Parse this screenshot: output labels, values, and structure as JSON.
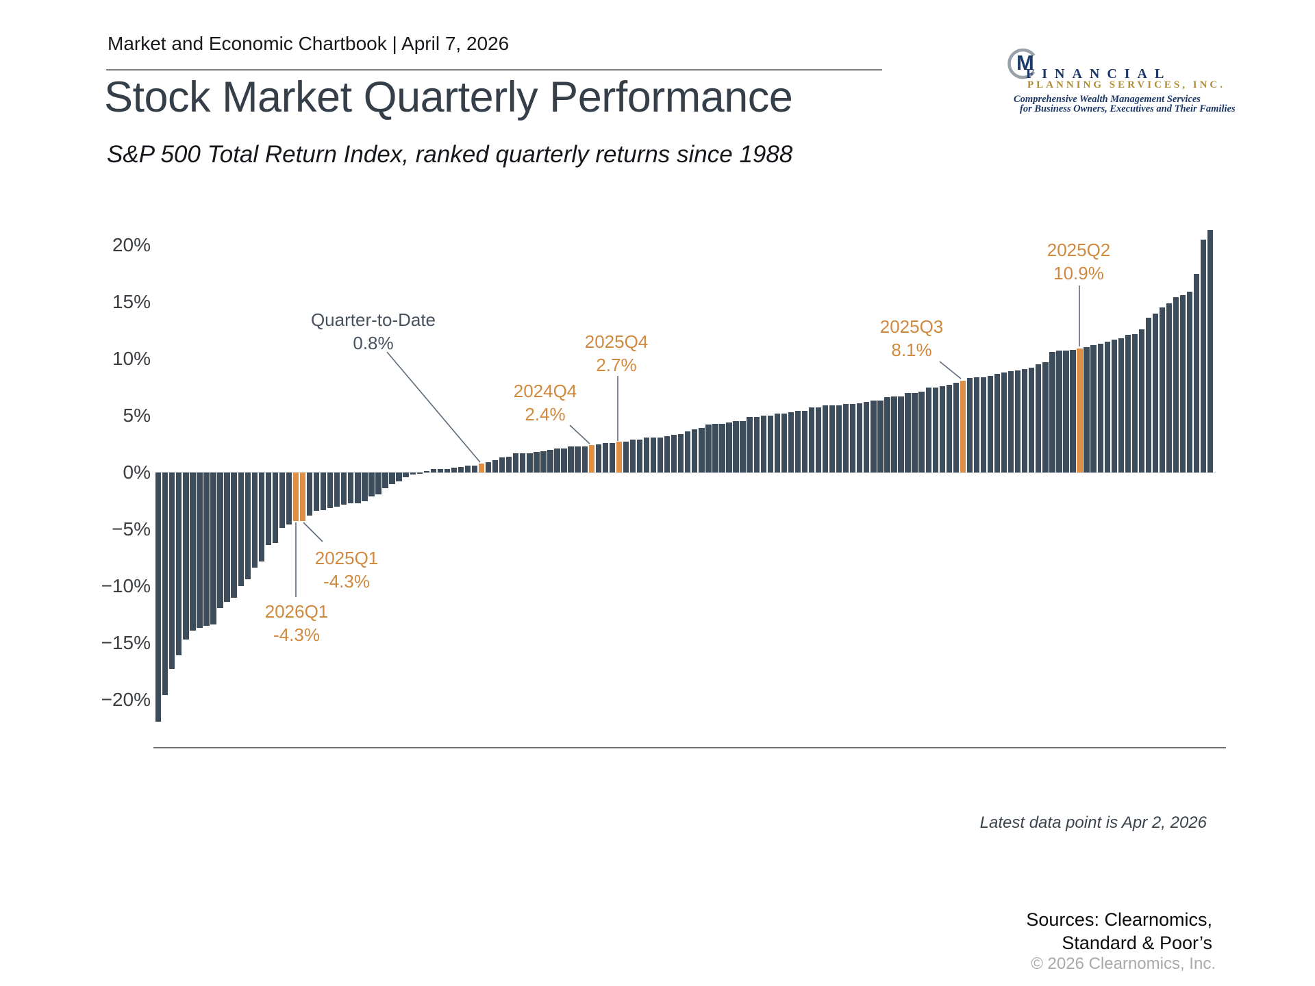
{
  "header": {
    "chartbook": "Market and Economic Chartbook | April 7, 2026"
  },
  "title": "Stock Market Quarterly Performance",
  "subtitle": "S&P 500 Total Return Index, ranked quarterly returns since 1988",
  "logo": {
    "monogram": "M",
    "line1": "FINANCIAL",
    "line2": "PLANNING SERVICES, INC.",
    "tagline1": "Comprehensive Wealth Management Services",
    "tagline2": "for Business Owners, Executives and Their Families",
    "navy": "#1c3768",
    "gold": "#ad8c35",
    "arc_gray": "#98a1aa"
  },
  "colors": {
    "bar": "#3d4c5b",
    "highlight": "#de9049",
    "annotation_orange": "#d0893f",
    "annotation_dark": "#47525e",
    "callout_line": "#5d6b7a",
    "title": "#353f4a",
    "axis_line": "#6f7276"
  },
  "chart_data": {
    "type": "bar",
    "title": "S&P 500 Total Return Index, ranked quarterly returns since 1988",
    "xlabel": "",
    "ylabel": "",
    "ylim": [
      -23,
      22.5
    ],
    "grid": false,
    "legend": false,
    "y_ticks": [
      "20%",
      "15%",
      "10%",
      "5%",
      "0%",
      "−5%",
      "−10%",
      "−15%",
      "−20%"
    ],
    "y_tick_values": [
      20,
      15,
      10,
      5,
      0,
      -5,
      -10,
      -15,
      -20
    ],
    "values": [
      -21.9,
      -19.6,
      -17.3,
      -16.1,
      -14.7,
      -13.9,
      -13.7,
      -13.5,
      -13.4,
      -11.9,
      -11.4,
      -11.0,
      -10.0,
      -9.4,
      -8.4,
      -7.8,
      -6.4,
      -6.2,
      -4.9,
      -4.6,
      -4.3,
      -4.3,
      -3.8,
      -3.4,
      -3.3,
      -3.1,
      -3.0,
      -2.8,
      -2.7,
      -2.7,
      -2.5,
      -2.1,
      -1.9,
      -1.4,
      -1.0,
      -0.8,
      -0.4,
      -0.2,
      -0.1,
      0.1,
      0.3,
      0.3,
      0.3,
      0.4,
      0.5,
      0.6,
      0.6,
      0.8,
      0.9,
      1.1,
      1.3,
      1.4,
      1.7,
      1.7,
      1.7,
      1.8,
      1.9,
      2.0,
      2.1,
      2.1,
      2.3,
      2.3,
      2.3,
      2.4,
      2.5,
      2.6,
      2.6,
      2.7,
      2.7,
      2.9,
      2.9,
      3.1,
      3.1,
      3.1,
      3.2,
      3.3,
      3.4,
      3.6,
      3.8,
      3.9,
      4.2,
      4.3,
      4.3,
      4.4,
      4.5,
      4.5,
      4.9,
      4.9,
      5.0,
      5.0,
      5.2,
      5.2,
      5.3,
      5.4,
      5.4,
      5.7,
      5.7,
      5.9,
      5.9,
      5.9,
      6.0,
      6.0,
      6.1,
      6.2,
      6.3,
      6.3,
      6.6,
      6.7,
      6.7,
      7.0,
      7.0,
      7.1,
      7.5,
      7.5,
      7.6,
      7.7,
      7.9,
      8.1,
      8.3,
      8.4,
      8.4,
      8.5,
      8.7,
      8.8,
      8.9,
      9.0,
      9.1,
      9.2,
      9.5,
      9.7,
      10.6,
      10.7,
      10.7,
      10.8,
      10.9,
      11.0,
      11.2,
      11.3,
      11.5,
      11.7,
      11.8,
      12.1,
      12.2,
      12.6,
      13.6,
      14.0,
      14.5,
      14.9,
      15.4,
      15.6,
      15.9,
      17.5,
      20.5,
      21.3
    ],
    "highlights": [
      {
        "index": 20,
        "name": "2026Q1",
        "value_pct": -4.3
      },
      {
        "index": 21,
        "name": "2025Q1",
        "value_pct": -4.3
      },
      {
        "index": 47,
        "name": "Quarter-to-Date",
        "value_pct": 0.8
      },
      {
        "index": 63,
        "name": "2024Q4",
        "value_pct": 2.4
      },
      {
        "index": 67,
        "name": "2025Q4",
        "value_pct": 2.7
      },
      {
        "index": 117,
        "name": "2025Q3",
        "value_pct": 8.1
      },
      {
        "index": 134,
        "name": "2025Q2",
        "value_pct": 10.9
      }
    ],
    "bar_color": "#3d4c5b",
    "highlight_color": "#de9049"
  },
  "annotations": {
    "qtd": {
      "label": "Quarter-to-Date",
      "value": "0.8%"
    },
    "y2026q1": {
      "label": "2026Q1",
      "value": "-4.3%"
    },
    "y2025q1": {
      "label": "2025Q1",
      "value": "-4.3%"
    },
    "y2024q4": {
      "label": "2024Q4",
      "value": "2.4%"
    },
    "y2025q4": {
      "label": "2025Q4",
      "value": "2.7%"
    },
    "y2025q3": {
      "label": "2025Q3",
      "value": "8.1%"
    },
    "y2025q2": {
      "label": "2025Q2",
      "value": "10.9%"
    }
  },
  "footer": {
    "latest": "Latest data point is Apr 2, 2026",
    "sources_line1": "Sources: Clearnomics,",
    "sources_line2": "Standard & Poor’s",
    "copyright": "© 2026 Clearnomics, Inc."
  }
}
